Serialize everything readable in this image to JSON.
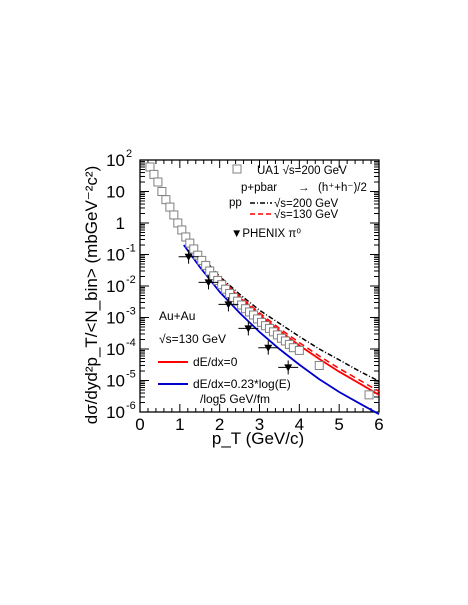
{
  "chart_data": {
    "type": "scatter",
    "title": "",
    "xlabel": "p_T (GeV/c)",
    "ylabel": "dσ/dyd²p_T/<N_bin> (mbGeV⁻²c²)",
    "xlim": [
      0,
      6
    ],
    "ylim": [
      1e-06,
      100
    ],
    "yscale": "log",
    "grid": false,
    "legend_position": "right",
    "x_ticks": [
      "0",
      "1",
      "2",
      "3",
      "4",
      "5",
      "6"
    ],
    "y_ticks": [
      {
        "base": "10",
        "exp": "2",
        "value": 100
      },
      {
        "base": "10",
        "exp": "",
        "value": 10
      },
      {
        "base": "1",
        "exp": "",
        "value": 1
      },
      {
        "base": "10",
        "exp": "-1",
        "value": 0.1
      },
      {
        "base": "10",
        "exp": "-2",
        "value": 0.01
      },
      {
        "base": "10",
        "exp": "-3",
        "value": 0.001
      },
      {
        "base": "10",
        "exp": "-4",
        "value": 0.0001
      },
      {
        "base": "10",
        "exp": "-5",
        "value": 1e-05
      },
      {
        "base": "10",
        "exp": "-6",
        "value": 1e-06
      }
    ],
    "legend": {
      "ua1_line1": "UA1 √s=200 GeV",
      "ua1_line2": "p+pbar",
      "ua1_arrow": "→",
      "ua1_line3": "(h⁺+h⁻)/2",
      "pp_label": "pp",
      "pp200": "√s=200 GeV",
      "pp130": "√s=130 GeV",
      "phenix": "▼PHENIX π⁰",
      "auau": "Au+Au",
      "auau_energy": "√s=130 GeV",
      "red_curve": "dE/dx=0",
      "blue_curve_line1": "dE/dx=0.23*log(E)",
      "blue_curve_line2": "/log5 GeV/fm"
    },
    "series": [
      {
        "name": "UA1 √s=200 GeV p+pbar → (h⁺+h⁻)/2",
        "marker": "open-square",
        "color": "#808080",
        "x": [
          0.25,
          0.35,
          0.45,
          0.55,
          0.65,
          0.75,
          0.85,
          0.95,
          1.05,
          1.15,
          1.25,
          1.35,
          1.45,
          1.55,
          1.65,
          1.75,
          1.85,
          1.95,
          2.05,
          2.15,
          2.25,
          2.35,
          2.45,
          2.55,
          2.65,
          2.75,
          2.85,
          2.95,
          3.05,
          3.15,
          3.25,
          3.35,
          3.45,
          3.55,
          3.65,
          3.75,
          3.85,
          4.0,
          4.5,
          5.75
        ],
        "y": [
          60,
          35,
          20,
          10,
          5.5,
          3.2,
          1.8,
          1.0,
          0.6,
          0.36,
          0.23,
          0.15,
          0.095,
          0.065,
          0.045,
          0.03,
          0.021,
          0.015,
          0.011,
          0.0079,
          0.0058,
          0.0043,
          0.0033,
          0.0025,
          0.0019,
          0.0015,
          0.0012,
          0.0009,
          0.0007,
          0.00055,
          0.00045,
          0.00035,
          0.00028,
          0.00022,
          0.00018,
          0.00014,
          0.00011,
          9e-05,
          3e-05,
          3.5e-06
        ]
      },
      {
        "name": "PHENIX π⁰",
        "marker": "filled-triangle-down",
        "color": "#000000",
        "x": [
          1.22,
          1.72,
          2.22,
          2.72,
          3.22,
          3.72
        ],
        "y": [
          0.085,
          0.013,
          0.0026,
          0.00045,
          0.00011,
          2.6e-05
        ],
        "xerr": 0.25
      },
      {
        "name": "pp √s=200 GeV",
        "style": "dash-dot",
        "color": "#000000",
        "x": [
          1.1,
          1.5,
          2.0,
          2.5,
          3.0,
          3.5,
          4.0,
          4.5,
          5.0,
          5.5,
          6.0
        ],
        "y": [
          0.5,
          0.1,
          0.02,
          0.0055,
          0.0017,
          0.00065,
          0.00025,
          0.0001,
          4.5e-05,
          2e-05,
          9.5e-06
        ]
      },
      {
        "name": "pp √s=130 GeV",
        "style": "dashed",
        "color": "#ff0000",
        "x": [
          1.1,
          1.5,
          2.0,
          2.5,
          3.0,
          3.5,
          4.0,
          4.5,
          5.0,
          5.5,
          6.0
        ],
        "y": [
          0.48,
          0.095,
          0.018,
          0.0047,
          0.0014,
          0.00045,
          0.00016,
          6e-05,
          2.4e-05,
          1.05e-05,
          4.5e-06
        ]
      },
      {
        "name": "dE/dx=0",
        "style": "solid",
        "color": "#ff0000",
        "x": [
          1.1,
          1.5,
          2.0,
          2.5,
          3.0,
          3.5,
          4.0,
          4.5,
          5.0,
          5.5,
          6.0
        ],
        "y": [
          0.45,
          0.09,
          0.017,
          0.0043,
          0.0012,
          0.00038,
          0.00013,
          4.8e-05,
          1.9e-05,
          8.2e-06,
          3.5e-06
        ]
      },
      {
        "name": "dE/dx=0.23*log(E)/log5 GeV/fm",
        "style": "solid",
        "color": "#0000cc",
        "x": [
          1.1,
          1.5,
          2.0,
          2.5,
          3.0,
          3.5,
          4.0,
          4.5,
          5.0,
          5.5,
          6.0
        ],
        "y": [
          0.2,
          0.04,
          0.0065,
          0.0014,
          0.00035,
          0.0001,
          3.2e-05,
          1.1e-05,
          4.3e-06,
          1.9e-06,
          8.5e-07
        ]
      }
    ]
  }
}
